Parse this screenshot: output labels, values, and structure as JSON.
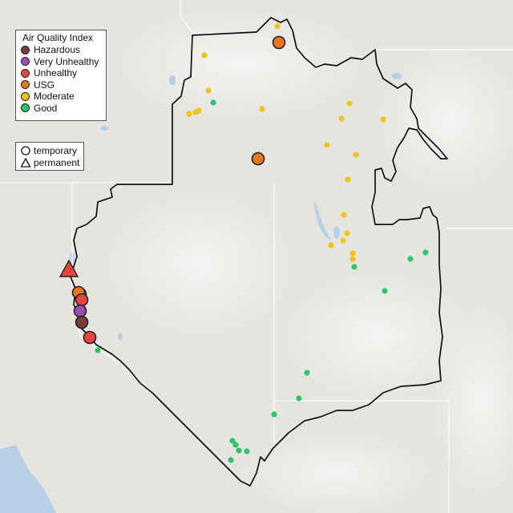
{
  "aqi_legend": {
    "title": "Air Quality Index",
    "categories": [
      {
        "key": "hazardous",
        "label": "Hazardous",
        "color": "#7b3b3b"
      },
      {
        "key": "very_unhealthy",
        "label": "Very Unhealthy",
        "color": "#9b4fb0"
      },
      {
        "key": "unhealthy",
        "label": "Unhealthy",
        "color": "#e8463c"
      },
      {
        "key": "usg",
        "label": "USG",
        "color": "#e8781f"
      },
      {
        "key": "moderate",
        "label": "Moderate",
        "color": "#f0c419"
      },
      {
        "key": "good",
        "label": "Good",
        "color": "#2fc46b"
      }
    ]
  },
  "monitor_legend": {
    "items": [
      {
        "key": "temporary",
        "label": "temporary",
        "symbol": "circle"
      },
      {
        "key": "permanent",
        "label": "permanent",
        "symbol": "triangle"
      }
    ]
  },
  "colors": {
    "background": "#e6e4e1",
    "boundary": "#111111",
    "water": "#b8d0e6"
  },
  "monitors": [
    {
      "aqi": "usg",
      "type": "temporary",
      "size": "large"
    },
    {
      "aqi": "usg",
      "type": "temporary",
      "size": "large"
    },
    {
      "aqi": "unhealthy",
      "type": "temporary",
      "size": "large"
    },
    {
      "aqi": "unhealthy",
      "type": "permanent",
      "size": "large"
    },
    {
      "aqi": "usg",
      "type": "temporary",
      "size": "large"
    },
    {
      "aqi": "unhealthy",
      "type": "temporary",
      "size": "large"
    },
    {
      "aqi": "very_unhealthy",
      "type": "temporary",
      "size": "large"
    },
    {
      "aqi": "hazardous",
      "type": "temporary",
      "size": "large"
    },
    {
      "aqi": "unhealthy",
      "type": "temporary",
      "size": "large"
    },
    {
      "aqi": "moderate",
      "type": "temporary",
      "size": "small"
    },
    {
      "aqi": "moderate",
      "type": "temporary",
      "size": "small"
    },
    {
      "aqi": "moderate",
      "type": "temporary",
      "size": "small"
    },
    {
      "aqi": "moderate",
      "type": "temporary",
      "size": "small"
    },
    {
      "aqi": "moderate",
      "type": "temporary",
      "size": "small"
    },
    {
      "aqi": "moderate",
      "type": "temporary",
      "size": "small"
    },
    {
      "aqi": "moderate",
      "type": "temporary",
      "size": "small"
    },
    {
      "aqi": "moderate",
      "type": "temporary",
      "size": "small"
    },
    {
      "aqi": "moderate",
      "type": "temporary",
      "size": "small"
    },
    {
      "aqi": "moderate",
      "type": "temporary",
      "size": "small"
    },
    {
      "aqi": "moderate",
      "type": "temporary",
      "size": "small"
    },
    {
      "aqi": "moderate",
      "type": "temporary",
      "size": "small"
    },
    {
      "aqi": "moderate",
      "type": "temporary",
      "size": "small"
    },
    {
      "aqi": "moderate",
      "type": "temporary",
      "size": "small"
    },
    {
      "aqi": "moderate",
      "type": "temporary",
      "size": "small"
    },
    {
      "aqi": "moderate",
      "type": "temporary",
      "size": "small"
    },
    {
      "aqi": "moderate",
      "type": "temporary",
      "size": "small"
    },
    {
      "aqi": "moderate",
      "type": "temporary",
      "size": "small"
    },
    {
      "aqi": "moderate",
      "type": "temporary",
      "size": "small"
    },
    {
      "aqi": "good",
      "type": "temporary",
      "size": "small"
    },
    {
      "aqi": "good",
      "type": "temporary",
      "size": "small"
    },
    {
      "aqi": "good",
      "type": "temporary",
      "size": "small"
    },
    {
      "aqi": "good",
      "type": "temporary",
      "size": "small"
    },
    {
      "aqi": "good",
      "type": "temporary",
      "size": "small"
    },
    {
      "aqi": "good",
      "type": "temporary",
      "size": "small"
    },
    {
      "aqi": "good",
      "type": "temporary",
      "size": "small"
    },
    {
      "aqi": "good",
      "type": "temporary",
      "size": "small"
    },
    {
      "aqi": "good",
      "type": "temporary",
      "size": "small"
    },
    {
      "aqi": "good",
      "type": "temporary",
      "size": "small"
    },
    {
      "aqi": "good",
      "type": "temporary",
      "size": "small"
    },
    {
      "aqi": "good",
      "type": "temporary",
      "size": "small"
    },
    {
      "aqi": "good",
      "type": "temporary",
      "size": "small"
    },
    {
      "aqi": "good",
      "type": "temporary",
      "size": "small"
    }
  ]
}
